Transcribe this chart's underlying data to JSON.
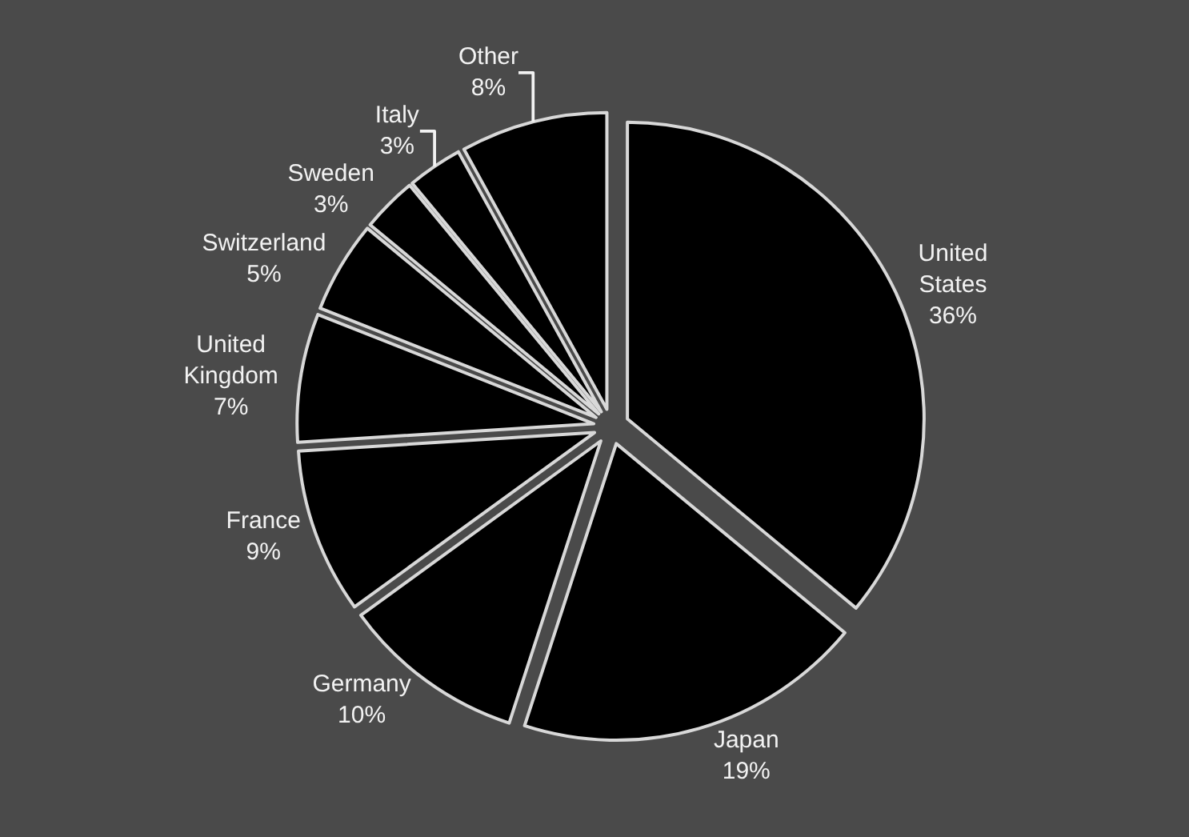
{
  "chart_data": {
    "type": "pie",
    "categories": [
      "United States",
      "Japan",
      "Germany",
      "France",
      "United Kingdom",
      "Switzerland",
      "Sweden",
      "Italy",
      "Other"
    ],
    "values": [
      36,
      19,
      10,
      9,
      7,
      5,
      3,
      3,
      8
    ],
    "value_labels": [
      "36%",
      "19%",
      "10%",
      "9%",
      "7%",
      "5%",
      "3%",
      "3%",
      "8%"
    ],
    "colors": [
      "#000000",
      "#000000",
      "#000000",
      "#000000",
      "#000000",
      "#000000",
      "#000000",
      "#000000",
      "#000000"
    ],
    "legend": false
  }
}
